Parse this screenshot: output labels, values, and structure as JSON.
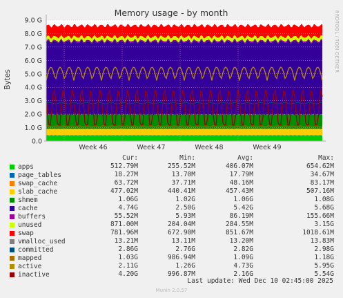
{
  "chart_data": {
    "type": "area",
    "title": "Memory usage - by month",
    "ylabel": "Bytes",
    "side_label": "RRDTOOL / TOBI OETIKER",
    "y_ticks": [
      "0.0",
      "1.0 G",
      "2.0 G",
      "3.0 G",
      "4.0 G",
      "5.0 G",
      "6.0 G",
      "7.0 G",
      "8.0 G",
      "9.0 G"
    ],
    "x_ticks": [
      "Week 46",
      "Week 47",
      "Week 48",
      "Week 49"
    ],
    "ylim": [
      0,
      9.0
    ],
    "grid": true,
    "columns": [
      "Cur:",
      "Min:",
      "Avg:",
      "Max:"
    ],
    "series": [
      {
        "name": "apps",
        "color": "#00cc00",
        "cur": "512.79M",
        "min": "255.52M",
        "avg": "406.07M",
        "max": "654.62M"
      },
      {
        "name": "page_tables",
        "color": "#0066b3",
        "cur": "18.27M",
        "min": "13.70M",
        "avg": "17.79M",
        "max": "34.67M"
      },
      {
        "name": "swap_cache",
        "color": "#ff8000",
        "cur": "63.72M",
        "min": "37.71M",
        "avg": "48.16M",
        "max": "83.17M"
      },
      {
        "name": "slab_cache",
        "color": "#ffcc00",
        "cur": "477.02M",
        "min": "440.41M",
        "avg": "457.43M",
        "max": "507.16M"
      },
      {
        "name": "shmem",
        "color": "#008f00",
        "cur": "1.06G",
        "min": "1.02G",
        "avg": "1.06G",
        "max": "1.08G"
      },
      {
        "name": "cache",
        "color": "#330099",
        "cur": "4.74G",
        "min": "2.50G",
        "avg": "5.42G",
        "max": "5.68G"
      },
      {
        "name": "buffers",
        "color": "#990099",
        "cur": "55.52M",
        "min": "5.93M",
        "avg": "86.19M",
        "max": "155.66M"
      },
      {
        "name": "unused",
        "color": "#ccff00",
        "cur": "871.00M",
        "min": "204.04M",
        "avg": "284.55M",
        "max": "3.15G"
      },
      {
        "name": "swap",
        "color": "#ff0000",
        "cur": "781.96M",
        "min": "672.90M",
        "avg": "851.67M",
        "max": "1018.61M"
      },
      {
        "name": "vmalloc_used",
        "color": "#808080",
        "cur": "13.21M",
        "min": "13.11M",
        "avg": "13.20M",
        "max": "13.83M"
      },
      {
        "name": "committed",
        "color": "#004d80",
        "cur": "2.86G",
        "min": "2.76G",
        "avg": "2.82G",
        "max": "2.98G"
      },
      {
        "name": "mapped",
        "color": "#a66f00",
        "cur": "1.03G",
        "min": "986.94M",
        "avg": "1.09G",
        "max": "1.18G"
      },
      {
        "name": "active",
        "color": "#b38f00",
        "cur": "2.11G",
        "min": "1.26G",
        "avg": "4.73G",
        "max": "5.95G"
      },
      {
        "name": "inactive",
        "color": "#990000",
        "cur": "4.20G",
        "min": "996.87M",
        "avg": "2.16G",
        "max": "5.54G"
      }
    ],
    "last_update": "Last update: Wed Dec 10 02:45:00 2025",
    "generator": "Munin 2.0.57"
  }
}
